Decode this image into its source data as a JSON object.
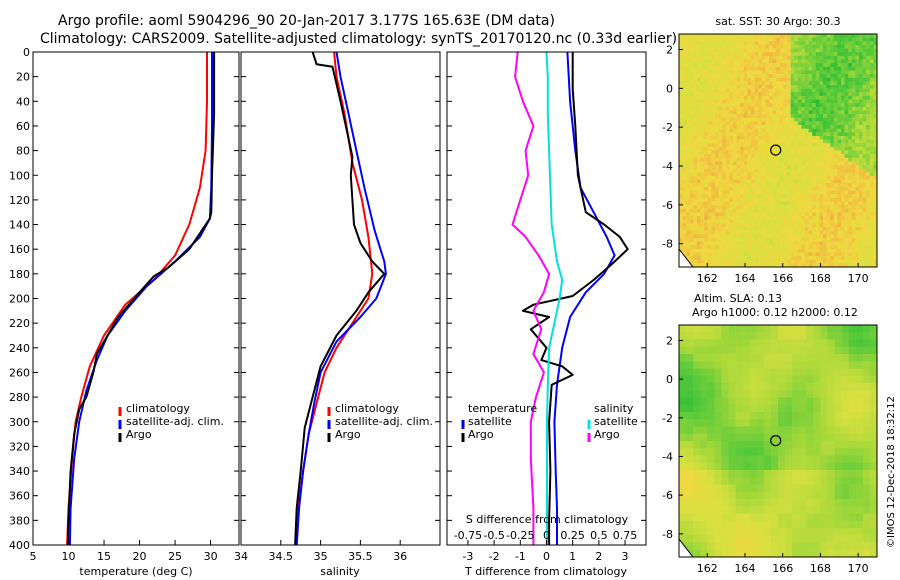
{
  "header": {
    "title_line1": "Argo profile: aoml 5904296_90 20-Jan-2017 3.177S 165.63E (DM data)",
    "title_line2": "Climatology: CARS2009. Satellite-adjusted climatology: synTS_20170120.nc (0.33d earlier)"
  },
  "footer": {
    "credit": "©IMOS 12-Dec-2018 18:32:12"
  },
  "colors": {
    "climatology": "#ff0000",
    "satellite": "#0000ff",
    "argo": "#000000",
    "salinity_diff": "#ff00ff",
    "satellite_sal_diff": "#00e0e0"
  },
  "chart_data": [
    {
      "type": "line",
      "name": "temperature",
      "xlabel": "temperature (deg C)",
      "xlim": [
        5,
        34
      ],
      "xticks": [
        5,
        10,
        15,
        20,
        25,
        30
      ],
      "ylim": [
        400,
        0
      ],
      "yticks": [
        0,
        20,
        40,
        60,
        80,
        100,
        120,
        140,
        160,
        180,
        200,
        220,
        240,
        260,
        280,
        300,
        320,
        340,
        360,
        380,
        400
      ],
      "legend": [
        "climatology",
        "satellite-adj. clim.",
        "Argo"
      ],
      "series": [
        {
          "name": "climatology",
          "color": "#ff0000",
          "points": [
            [
              29.5,
              0
            ],
            [
              29.5,
              40
            ],
            [
              29.3,
              80
            ],
            [
              28.5,
              110
            ],
            [
              27,
              140
            ],
            [
              25,
              165
            ],
            [
              22,
              185
            ],
            [
              18,
              205
            ],
            [
              15,
              230
            ],
            [
              13,
              255
            ],
            [
              11.8,
              280
            ],
            [
              11,
              300
            ],
            [
              10.5,
              330
            ],
            [
              10,
              370
            ],
            [
              9.8,
              400
            ]
          ]
        },
        {
          "name": "satellite-adj. clim.",
          "color": "#0000ff",
          "points": [
            [
              30.2,
              0
            ],
            [
              30.2,
              60
            ],
            [
              30.1,
              110
            ],
            [
              29.9,
              135
            ],
            [
              28.5,
              150
            ],
            [
              25,
              170
            ],
            [
              21,
              190
            ],
            [
              18,
              210
            ],
            [
              15.5,
              230
            ],
            [
              14,
              250
            ],
            [
              12.5,
              275
            ],
            [
              11.5,
              300
            ],
            [
              10.8,
              330
            ],
            [
              10.3,
              370
            ],
            [
              10.2,
              400
            ]
          ]
        },
        {
          "name": "Argo",
          "color": "#000000",
          "points": [
            [
              30.5,
              0
            ],
            [
              30.5,
              50
            ],
            [
              30.2,
              100
            ],
            [
              30.1,
              130
            ],
            [
              29.9,
              135
            ],
            [
              27,
              160
            ],
            [
              24,
              175
            ],
            [
              22,
              182
            ],
            [
              20,
              195
            ],
            [
              18.5,
              205
            ],
            [
              17,
              215
            ],
            [
              15.5,
              230
            ],
            [
              14,
              245
            ],
            [
              13.5,
              260
            ],
            [
              12.5,
              280
            ],
            [
              11.5,
              290
            ],
            [
              10.8,
              310
            ],
            [
              10.3,
              340
            ],
            [
              10,
              380
            ],
            [
              9.9,
              400
            ]
          ]
        }
      ]
    },
    {
      "type": "line",
      "name": "salinity",
      "xlabel": "salinity",
      "xlim": [
        34.0,
        36.5
      ],
      "xticks": [
        34.0,
        34.5,
        35.0,
        35.5,
        36.0
      ],
      "xtick_labels": [
        "34",
        "34.5",
        "35",
        "35.5",
        "36"
      ],
      "ylim": [
        400,
        0
      ],
      "legend": [
        "climatology",
        "satellite-adj. clim.",
        "Argo"
      ],
      "series": [
        {
          "name": "climatology",
          "color": "#ff0000",
          "points": [
            [
              35.17,
              0
            ],
            [
              35.2,
              20
            ],
            [
              35.3,
              50
            ],
            [
              35.4,
              90
            ],
            [
              35.52,
              120
            ],
            [
              35.6,
              150
            ],
            [
              35.65,
              180
            ],
            [
              35.6,
              200
            ],
            [
              35.4,
              220
            ],
            [
              35.2,
              240
            ],
            [
              35.05,
              260
            ],
            [
              34.95,
              285
            ],
            [
              34.85,
              310
            ],
            [
              34.78,
              340
            ],
            [
              34.72,
              370
            ],
            [
              34.7,
              400
            ]
          ]
        },
        {
          "name": "satellite-adj. clim.",
          "color": "#0000ff",
          "points": [
            [
              35.2,
              0
            ],
            [
              35.25,
              20
            ],
            [
              35.35,
              50
            ],
            [
              35.45,
              80
            ],
            [
              35.55,
              110
            ],
            [
              35.68,
              145
            ],
            [
              35.8,
              170
            ],
            [
              35.82,
              180
            ],
            [
              35.7,
              200
            ],
            [
              35.5,
              215
            ],
            [
              35.2,
              235
            ],
            [
              35.0,
              260
            ],
            [
              34.92,
              285
            ],
            [
              34.85,
              310
            ],
            [
              34.78,
              340
            ],
            [
              34.73,
              370
            ],
            [
              34.7,
              400
            ]
          ]
        },
        {
          "name": "Argo",
          "color": "#000000",
          "points": [
            [
              34.9,
              0
            ],
            [
              34.95,
              10
            ],
            [
              35.15,
              12
            ],
            [
              35.25,
              40
            ],
            [
              35.35,
              70
            ],
            [
              35.4,
              85
            ],
            [
              35.38,
              100
            ],
            [
              35.4,
              120
            ],
            [
              35.42,
              140
            ],
            [
              35.5,
              155
            ],
            [
              35.65,
              170
            ],
            [
              35.8,
              180
            ],
            [
              35.6,
              195
            ],
            [
              35.45,
              210
            ],
            [
              35.2,
              230
            ],
            [
              35.0,
              255
            ],
            [
              34.9,
              280
            ],
            [
              34.8,
              305
            ],
            [
              34.75,
              340
            ],
            [
              34.7,
              370
            ],
            [
              34.68,
              400
            ]
          ]
        }
      ]
    },
    {
      "type": "line",
      "name": "difference",
      "xlabel": "T difference from climatology",
      "xlim": [
        -3.8,
        3.8
      ],
      "xticks": [
        -3,
        -2,
        -1,
        0,
        1,
        2,
        3
      ],
      "top_axis_label": "S difference from climatology",
      "top_ticks": [
        "-0.75",
        "-0.5",
        "-0.25",
        "0",
        "0.25",
        "0.5",
        "0.75"
      ],
      "ylim": [
        400,
        0
      ],
      "legend_temperature": [
        "temperature",
        "satellite",
        "Argo"
      ],
      "legend_salinity": [
        "salinity",
        "satellite",
        "Argo"
      ],
      "series": [
        {
          "name": "T satellite",
          "color": "#0000ff",
          "points": [
            [
              0.8,
              0
            ],
            [
              0.9,
              40
            ],
            [
              1.1,
              80
            ],
            [
              1.3,
              110
            ],
            [
              1.8,
              130
            ],
            [
              2.3,
              150
            ],
            [
              2.6,
              165
            ],
            [
              2.2,
              180
            ],
            [
              1.5,
              195
            ],
            [
              0.9,
              215
            ],
            [
              0.6,
              240
            ],
            [
              0.4,
              270
            ],
            [
              0.3,
              300
            ],
            [
              0.35,
              340
            ],
            [
              0.4,
              370
            ],
            [
              0.4,
              400
            ]
          ]
        },
        {
          "name": "T Argo",
          "color": "#000000",
          "points": [
            [
              1.0,
              0
            ],
            [
              1.0,
              30
            ],
            [
              1.1,
              60
            ],
            [
              1.2,
              100
            ],
            [
              1.5,
              130
            ],
            [
              2.2,
              140
            ],
            [
              2.8,
              150
            ],
            [
              3.1,
              160
            ],
            [
              2.5,
              172
            ],
            [
              1.8,
              185
            ],
            [
              1.0,
              198
            ],
            [
              -0.5,
              205
            ],
            [
              -0.9,
              210
            ],
            [
              0.1,
              215
            ],
            [
              -0.6,
              225
            ],
            [
              0.0,
              240
            ],
            [
              -0.2,
              250
            ],
            [
              0.6,
              255
            ],
            [
              1.0,
              262
            ],
            [
              0.2,
              270
            ],
            [
              0.1,
              300
            ],
            [
              0.15,
              340
            ],
            [
              0.1,
              380
            ],
            [
              0.1,
              400
            ]
          ]
        },
        {
          "name": "S satellite",
          "color": "#00e0e0",
          "points": [
            [
              0.0,
              0
            ],
            [
              0.05,
              20
            ],
            [
              0.05,
              50
            ],
            [
              0.1,
              80
            ],
            [
              0.15,
              110
            ],
            [
              0.2,
              140
            ],
            [
              0.4,
              170
            ],
            [
              0.6,
              185
            ],
            [
              0.5,
              200
            ],
            [
              0.3,
              220
            ],
            [
              0.1,
              240
            ],
            [
              0.05,
              270
            ],
            [
              0.02,
              300
            ],
            [
              0.02,
              340
            ],
            [
              0.02,
              400
            ]
          ]
        },
        {
          "name": "S Argo",
          "color": "#ff00ff",
          "points": [
            [
              -1.1,
              0
            ],
            [
              -1.2,
              20
            ],
            [
              -0.9,
              40
            ],
            [
              -0.5,
              60
            ],
            [
              -0.8,
              80
            ],
            [
              -0.7,
              100
            ],
            [
              -1.0,
              120
            ],
            [
              -1.3,
              140
            ],
            [
              -0.8,
              150
            ],
            [
              -0.3,
              165
            ],
            [
              0.1,
              180
            ],
            [
              -0.1,
              195
            ],
            [
              -0.5,
              210
            ],
            [
              -0.2,
              225
            ],
            [
              -0.5,
              245
            ],
            [
              -0.1,
              260
            ],
            [
              -0.4,
              280
            ],
            [
              -0.6,
              300
            ],
            [
              -0.6,
              330
            ],
            [
              -0.5,
              370
            ],
            [
              -0.5,
              400
            ]
          ]
        }
      ]
    },
    {
      "type": "heatmap",
      "name": "sst_map",
      "title": "sat. SST: 30 Argo: 30.3",
      "xlim": [
        160.5,
        171
      ],
      "xticks": [
        162,
        164,
        166,
        168,
        170
      ],
      "ylim": [
        -9.2,
        2.8
      ],
      "yticks": [
        2,
        0,
        -2,
        -4,
        -6,
        -8
      ],
      "marker": {
        "lon": 165.63,
        "lat": -3.177
      }
    },
    {
      "type": "heatmap",
      "name": "sla_map",
      "title_line1": "Altim. SLA: 0.13",
      "title_line2": "Argo h1000: 0.12 h2000: 0.12",
      "xlim": [
        160.5,
        171
      ],
      "xticks": [
        162,
        164,
        166,
        168,
        170
      ],
      "ylim": [
        -9.2,
        2.8
      ],
      "yticks": [
        2,
        0,
        -2,
        -4,
        -6,
        -8
      ],
      "marker": {
        "lon": 165.63,
        "lat": -3.177
      }
    }
  ]
}
